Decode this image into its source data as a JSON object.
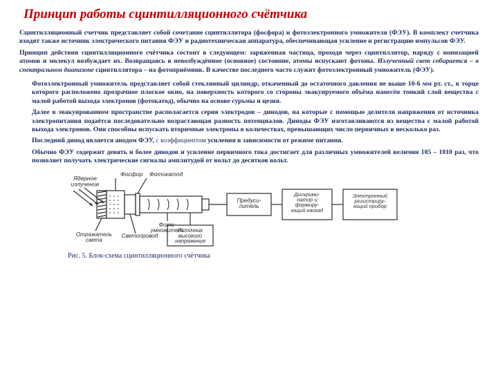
{
  "title": "Принцип работы сцинтилляционного счётчика",
  "p1": "Сцинтилляционный счетчик представляет собой сочетание сцинтиллятора (фосфора) и фотоэлектронного умножителя (ФЭУ). В комплект счетчика входят также источник электрического питания ФЭУ и радиотехническая аппаратура, обеспечивающая усиление и регистрацию импульсов ФЭУ.",
  "p2a": "Принцип действия сцинтилляционного счётчика состоит в следующем: заряженная частица, проходя через сцинтиллятор, наряду с ионизацией атомов и молекул возбуждает их. Возвращаясь в невозбуждённое (основное) состояние, атомы испускают фотоны. ",
  "p2b": "Излученный свет собирается – в спектральном диапазоне",
  "p2c": " сцинтиллятора – на фотоприёмник. В качестве последнего часто служит фотоэлектронный умножитель (ФЭУ).",
  "p3": "Фотоэлектронный умножитель представляет собой стеклянный цилиндр, откаченный до остаточного давления не выше 10-6 мм рт. ст., в торце которого расположено прозрачное плоское окно, на поверхность которого со стороны эвакуируемого объёма нанесён тонкий слой вещества с малой работой выхода электронов (фотокатод), обычно на основе сурьмы и цезия.",
  "p4": "Далее в эвакуированном пространстве располагается серия электродов – динодов, на которые с помощью делителя напряжения от источника электропитания подаётся последовательно возрастающая разность потенциалов. Диноды ФЭУ изготавливаются из вещества с малой работой выхода электронов. Они способны испускать вторичные электроны в количествах, превышающих число первичных в несколько раз.",
  "p5a": "Последний динод является анодом ФЭУ, ",
  "p5b": "с коэффициентом",
  "p5c": " усиления в зависимости от режиме питания.",
  "p6": "Обычно ФЭУ содержит девять и более динодов и усиление первичного тока достигает для различных умножителей величин 105 – 1010 раз, что позволяет получать электрические сигналы амплитудой от вольт до десятков вольт.",
  "caption": "Рис. 5. Блок-схема сцинтилляционного счётчика",
  "diagram": {
    "labels": {
      "nuclear": "Ядерное излучение",
      "phosphor": "Фосфор",
      "photocathode": "Фотокатод",
      "photomult": "Фото-умножитель",
      "preamp": "Предуси-литель",
      "reflector": "Отражатель света",
      "lightguide": "Светопровод",
      "hv": "Источник высокого напряжения",
      "disc": "Дискрими-натор и формиру-ющий каскад",
      "recorder": "Электронный регистриру-ющий прибор"
    },
    "colors": {
      "stroke": "#2a2a2a",
      "text": "#2a2a2a",
      "hatch": "#2a2a2a",
      "bg": "#ffffff"
    },
    "stroke_width": 1.2
  }
}
